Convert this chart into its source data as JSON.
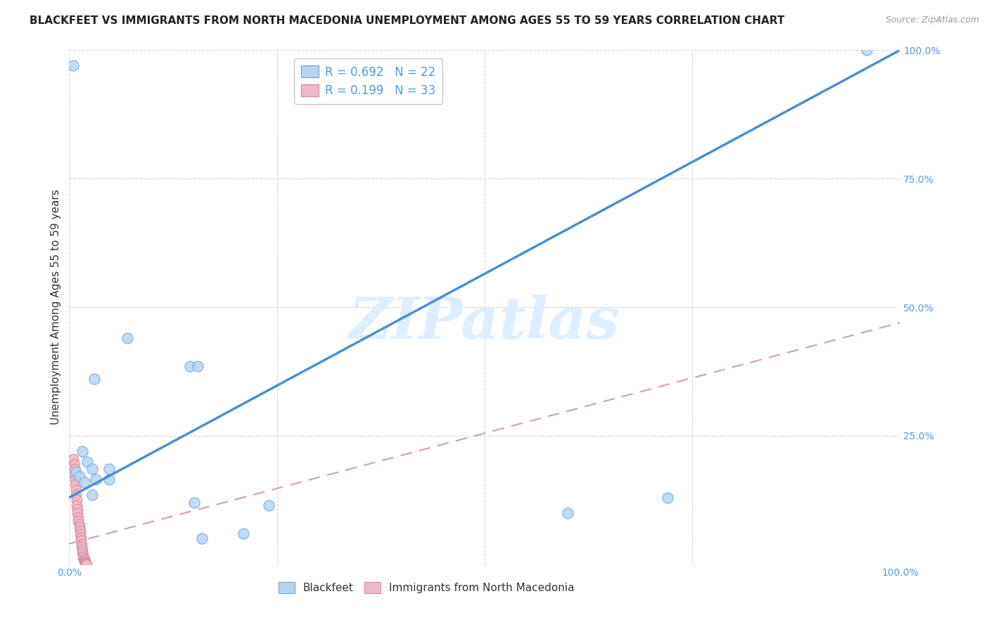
{
  "title": "BLACKFEET VS IMMIGRANTS FROM NORTH MACEDONIA UNEMPLOYMENT AMONG AGES 55 TO 59 YEARS CORRELATION CHART",
  "source": "Source: ZipAtlas.com",
  "ylabel": "Unemployment Among Ages 55 to 59 years",
  "xlim": [
    0.0,
    1.0
  ],
  "ylim": [
    0.0,
    1.0
  ],
  "xticks": [
    0.0,
    0.25,
    0.5,
    0.75,
    1.0
  ],
  "yticks": [
    0.0,
    0.25,
    0.5,
    0.75,
    1.0
  ],
  "xticklabels": [
    "0.0%",
    "",
    "",
    "",
    "100.0%"
  ],
  "yticklabels": [
    "",
    "25.0%",
    "50.0%",
    "75.0%",
    "100.0%"
  ],
  "watermark": "ZIPatlas",
  "legend_label_1": "R = 0.692   N = 22",
  "legend_label_2": "R = 0.199   N = 33",
  "bottom_label_1": "Blackfeet",
  "bottom_label_2": "Immigrants from North Macedonia",
  "blue_line_x": [
    0.0,
    1.0
  ],
  "blue_line_y": [
    0.13,
    1.0
  ],
  "pink_line_x": [
    0.0,
    1.0
  ],
  "pink_line_y": [
    0.04,
    0.47
  ],
  "blackfeet_scatter": [
    [
      0.005,
      0.97
    ],
    [
      0.96,
      1.0
    ],
    [
      0.07,
      0.44
    ],
    [
      0.03,
      0.36
    ],
    [
      0.145,
      0.385
    ],
    [
      0.016,
      0.22
    ],
    [
      0.022,
      0.2
    ],
    [
      0.008,
      0.18
    ],
    [
      0.028,
      0.185
    ],
    [
      0.048,
      0.185
    ],
    [
      0.012,
      0.17
    ],
    [
      0.018,
      0.16
    ],
    [
      0.032,
      0.165
    ],
    [
      0.048,
      0.165
    ],
    [
      0.028,
      0.135
    ],
    [
      0.15,
      0.12
    ],
    [
      0.24,
      0.115
    ],
    [
      0.16,
      0.05
    ],
    [
      0.21,
      0.06
    ],
    [
      0.6,
      0.1
    ],
    [
      0.72,
      0.13
    ],
    [
      0.155,
      0.385
    ]
  ],
  "macedonia_scatter": [
    [
      0.005,
      0.205
    ],
    [
      0.006,
      0.195
    ],
    [
      0.006,
      0.185
    ],
    [
      0.006,
      0.175
    ],
    [
      0.007,
      0.165
    ],
    [
      0.007,
      0.155
    ],
    [
      0.008,
      0.145
    ],
    [
      0.008,
      0.135
    ],
    [
      0.009,
      0.125
    ],
    [
      0.009,
      0.115
    ],
    [
      0.01,
      0.108
    ],
    [
      0.01,
      0.1
    ],
    [
      0.011,
      0.092
    ],
    [
      0.011,
      0.085
    ],
    [
      0.012,
      0.078
    ],
    [
      0.012,
      0.072
    ],
    [
      0.013,
      0.065
    ],
    [
      0.013,
      0.058
    ],
    [
      0.014,
      0.052
    ],
    [
      0.014,
      0.046
    ],
    [
      0.015,
      0.04
    ],
    [
      0.015,
      0.034
    ],
    [
      0.016,
      0.028
    ],
    [
      0.016,
      0.023
    ],
    [
      0.017,
      0.018
    ],
    [
      0.017,
      0.014
    ],
    [
      0.018,
      0.01
    ],
    [
      0.018,
      0.007
    ],
    [
      0.019,
      0.005
    ],
    [
      0.019,
      0.003
    ],
    [
      0.02,
      0.002
    ],
    [
      0.02,
      0.001
    ],
    [
      0.021,
      0.0
    ]
  ],
  "blue_line_color": "#4a8fd4",
  "pink_line_color": "#d4a0b0",
  "scatter_blue_face": "#b8d4f0",
  "scatter_blue_edge": "#6aaad8",
  "scatter_pink_face": "#f0b8c8",
  "scatter_pink_edge": "#d08898",
  "grid_color": "#cccccc",
  "title_fontsize": 11,
  "source_fontsize": 9,
  "ylabel_fontsize": 11,
  "tick_fontsize": 10,
  "watermark_fontsize": 60,
  "watermark_color": "#ddeeff",
  "background_color": "#ffffff",
  "tick_label_color": "#5599dd"
}
